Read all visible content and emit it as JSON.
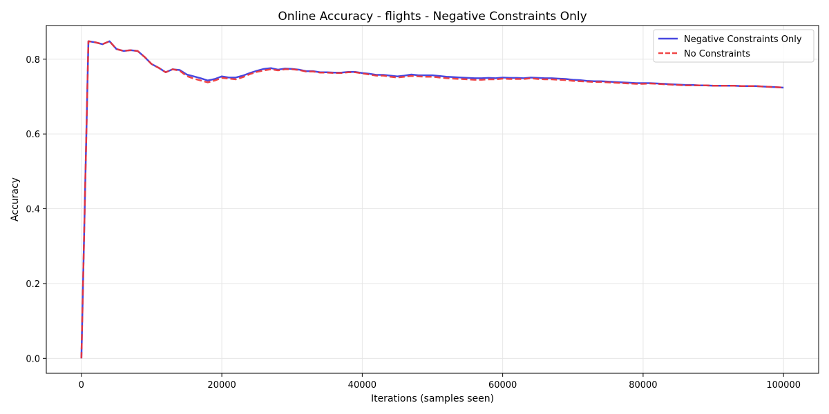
{
  "chart_data": {
    "type": "line",
    "title": "Online Accuracy - flights - Negative Constraints Only",
    "xlabel": "Iterations (samples seen)",
    "ylabel": "Accuracy",
    "xlim": [
      -5000,
      105000
    ],
    "ylim": [
      -0.04,
      0.89
    ],
    "xticks": [
      0,
      20000,
      40000,
      60000,
      80000,
      100000
    ],
    "yticks": [
      0.0,
      0.2,
      0.4,
      0.6,
      0.8
    ],
    "xtick_labels": [
      "0",
      "20000",
      "40000",
      "60000",
      "80000",
      "100000"
    ],
    "ytick_labels": [
      "0.0",
      "0.2",
      "0.4",
      "0.6",
      "0.8"
    ],
    "grid": true,
    "legend_position": "top-right",
    "x": [
      0,
      1000,
      2000,
      3000,
      4000,
      5000,
      6000,
      7000,
      8000,
      9000,
      10000,
      11000,
      12000,
      13000,
      14000,
      15000,
      16000,
      17000,
      18000,
      19000,
      20000,
      21000,
      22000,
      23000,
      24000,
      25000,
      26000,
      27000,
      28000,
      29000,
      30000,
      31000,
      32000,
      33000,
      34000,
      35000,
      36000,
      37000,
      38000,
      39000,
      40000,
      41000,
      42000,
      43000,
      44000,
      45000,
      46000,
      47000,
      48000,
      49000,
      50000,
      51000,
      52000,
      53000,
      54000,
      55000,
      56000,
      57000,
      58000,
      59000,
      60000,
      61000,
      62000,
      63000,
      64000,
      65000,
      66000,
      67000,
      68000,
      69000,
      70000,
      71000,
      72000,
      73000,
      74000,
      75000,
      76000,
      77000,
      78000,
      79000,
      80000,
      81000,
      82000,
      83000,
      84000,
      85000,
      86000,
      87000,
      88000,
      89000,
      90000,
      91000,
      92000,
      93000,
      94000,
      95000,
      96000,
      97000,
      98000,
      99000,
      100000
    ],
    "series": [
      {
        "name": "Negative Constraints Only",
        "color": "#3333dd",
        "style": "solid",
        "values": [
          0.0,
          0.848,
          0.845,
          0.84,
          0.848,
          0.827,
          0.822,
          0.824,
          0.822,
          0.806,
          0.787,
          0.777,
          0.765,
          0.773,
          0.771,
          0.759,
          0.754,
          0.749,
          0.743,
          0.747,
          0.754,
          0.751,
          0.751,
          0.756,
          0.763,
          0.769,
          0.774,
          0.776,
          0.772,
          0.775,
          0.774,
          0.772,
          0.768,
          0.768,
          0.765,
          0.765,
          0.764,
          0.764,
          0.766,
          0.766,
          0.763,
          0.761,
          0.758,
          0.758,
          0.756,
          0.754,
          0.756,
          0.759,
          0.757,
          0.757,
          0.757,
          0.755,
          0.753,
          0.752,
          0.751,
          0.75,
          0.749,
          0.749,
          0.75,
          0.749,
          0.751,
          0.75,
          0.75,
          0.749,
          0.751,
          0.75,
          0.749,
          0.749,
          0.748,
          0.747,
          0.745,
          0.744,
          0.742,
          0.741,
          0.741,
          0.74,
          0.739,
          0.738,
          0.737,
          0.736,
          0.736,
          0.736,
          0.735,
          0.734,
          0.733,
          0.732,
          0.731,
          0.731,
          0.73,
          0.73,
          0.729,
          0.729,
          0.729,
          0.729,
          0.728,
          0.728,
          0.728,
          0.727,
          0.726,
          0.725,
          0.724
        ]
      },
      {
        "name": "No Constraints",
        "color": "#ee3333",
        "style": "dashed",
        "values": [
          0.0,
          0.848,
          0.845,
          0.84,
          0.848,
          0.827,
          0.822,
          0.824,
          0.822,
          0.806,
          0.787,
          0.777,
          0.765,
          0.773,
          0.769,
          0.755,
          0.748,
          0.743,
          0.738,
          0.743,
          0.75,
          0.748,
          0.746,
          0.752,
          0.76,
          0.766,
          0.77,
          0.773,
          0.77,
          0.773,
          0.773,
          0.771,
          0.767,
          0.767,
          0.764,
          0.764,
          0.763,
          0.763,
          0.765,
          0.765,
          0.762,
          0.759,
          0.756,
          0.756,
          0.753,
          0.751,
          0.753,
          0.755,
          0.754,
          0.753,
          0.753,
          0.751,
          0.749,
          0.748,
          0.747,
          0.746,
          0.745,
          0.745,
          0.746,
          0.746,
          0.748,
          0.747,
          0.747,
          0.747,
          0.749,
          0.747,
          0.746,
          0.746,
          0.745,
          0.744,
          0.742,
          0.741,
          0.74,
          0.739,
          0.739,
          0.738,
          0.737,
          0.736,
          0.735,
          0.734,
          0.734,
          0.735,
          0.734,
          0.733,
          0.732,
          0.731,
          0.73,
          0.73,
          0.73,
          0.73,
          0.729,
          0.729,
          0.729,
          0.729,
          0.728,
          0.728,
          0.728,
          0.727,
          0.726,
          0.725,
          0.724
        ]
      }
    ]
  }
}
